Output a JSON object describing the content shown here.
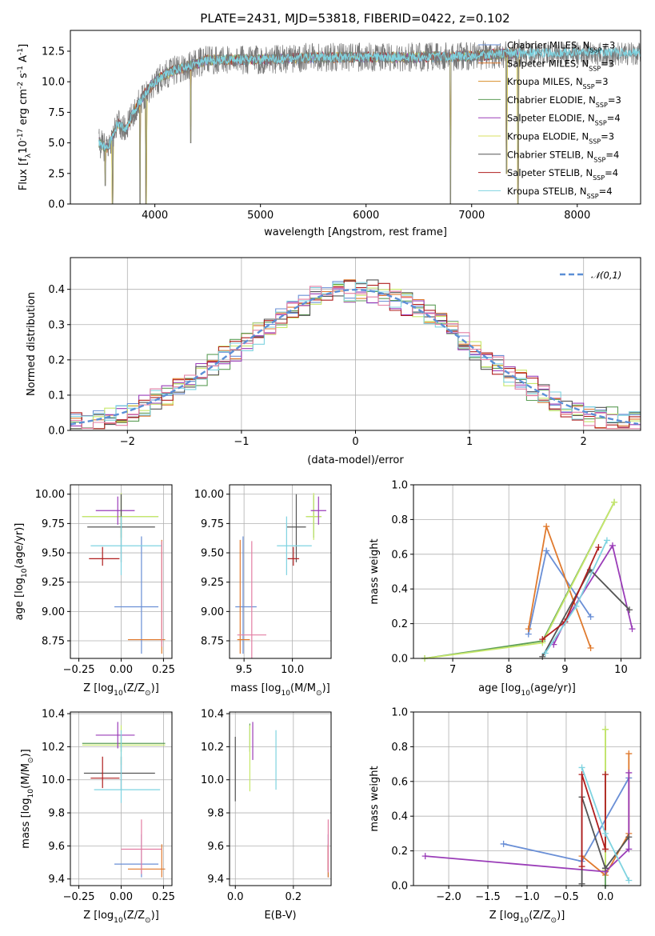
{
  "chart_data": [
    {
      "id": "spectrum",
      "type": "line",
      "title": "PLATE=2431, MJD=53818, FIBERID=0422, z=0.102",
      "xlabel": "wavelength [Angstrom, rest frame]",
      "ylabel": "Flux [f$_\\lambda$10$^{-17}$ erg cm$^{-2}$ s$^{-1}$ A$^{-1}$]",
      "xlim": [
        3200,
        8600
      ],
      "ylim": [
        0,
        14.2
      ],
      "xticks": [
        4000,
        5000,
        6000,
        7000,
        8000
      ],
      "yticks": [
        "0.0",
        "2.5",
        "5.0",
        "7.5",
        "10.0",
        "12.5"
      ],
      "envelope_x": [
        3470,
        3550,
        3650,
        3720,
        3800,
        3900,
        4000,
        4100,
        4200,
        4300,
        4500,
        5000,
        5500,
        6000,
        6500,
        7000,
        7300,
        7450
      ],
      "envelope_y": [
        5.0,
        4.5,
        6.6,
        6.0,
        7.5,
        9.0,
        10.0,
        10.6,
        11.0,
        11.2,
        11.8,
        11.8,
        12.0,
        12.0,
        12.0,
        12.1,
        12.3,
        12.3
      ],
      "absorption_dips": [
        [
          3530,
          1.5
        ],
        [
          3600,
          0.0
        ],
        [
          3860,
          0.0
        ],
        [
          3915,
          0.0
        ],
        [
          4340,
          5.0
        ],
        [
          6800,
          0.0
        ],
        [
          7440,
          0.0
        ],
        [
          7330,
          2.5
        ]
      ],
      "legend_entries": [
        {
          "label": "Chabrier MILES, N$_{SSP}$=3",
          "color": "#6a8fd6"
        },
        {
          "label": "Salpeter MILES, N$_{SSP}$=3",
          "color": "#e07a2e"
        },
        {
          "label": "Kroupa MILES, N$_{SSP}$=3",
          "color": "#d88f2a"
        },
        {
          "label": "Chabrier ELODIE, N$_{SSP}$=3",
          "color": "#5e9e58"
        },
        {
          "label": "Salpeter ELODIE, N$_{SSP}$=4",
          "color": "#9a3db8"
        },
        {
          "label": "Kroupa ELODIE, N$_{SSP}$=3",
          "color": "#d8e060"
        },
        {
          "label": "Chabrier STELIB, N$_{SSP}$=4",
          "color": "#555555"
        },
        {
          "label": "Salpeter STELIB, N$_{SSP}$=4",
          "color": "#b01e1e"
        },
        {
          "label": "Kroupa STELIB, N$_{SSP}$=4",
          "color": "#7fd3e0"
        }
      ],
      "legend_placement": "right"
    },
    {
      "id": "residuals",
      "type": "step-histogram",
      "xlabel": "(data-model)/error",
      "ylabel": "Normed distribution",
      "xlim": [
        -2.5,
        2.5
      ],
      "ylim": [
        0,
        0.49
      ],
      "xticks": [
        "−2",
        "−1",
        "0",
        "1",
        "2"
      ],
      "yticks": [
        "0.0",
        "0.1",
        "0.2",
        "0.3",
        "0.4"
      ],
      "grid": true,
      "reference_curve": {
        "label": "$\\mathcal{N}(0,1)$",
        "color": "#5b8fd6",
        "style": "dashed"
      },
      "legend_placement": "top-right",
      "series_colors": [
        "#6a8fd6",
        "#e07a2e",
        "#5e9e58",
        "#9a3db8",
        "#c7e86b",
        "#555555",
        "#b01e1e",
        "#7fd3e0",
        "#e37ea3"
      ]
    },
    {
      "id": "age_vs_Z",
      "type": "errorbar",
      "xlabel": "Z [log$_{10}$($Z/Z_\\odot$)]",
      "ylabel": "age  [log$_{10}$($age/yr$)]",
      "xlim": [
        -0.3,
        0.3
      ],
      "ylim": [
        8.6,
        10.08
      ],
      "xticks": [
        -0.25,
        0.0,
        0.25
      ],
      "xticklabels": [
        "−0.25",
        "0.00",
        "0.25"
      ],
      "yticks": [
        8.75,
        9.0,
        9.25,
        9.5,
        9.75,
        10.0
      ],
      "yticklabels": [
        "8.75",
        "9.00",
        "9.25",
        "9.50",
        "9.75",
        "10.00"
      ],
      "grid": true,
      "points": [
        {
          "x": 0.12,
          "y": 9.04,
          "xerr": [
            0.16,
            0.1
          ],
          "yerr": [
            0.4,
            0.6
          ],
          "color": "#6a8fd6"
        },
        {
          "x": 0.24,
          "y": 8.76,
          "xerr": [
            0.2,
            0.02
          ],
          "yerr": [
            0.12,
            0.85
          ],
          "color": "#e07a2e"
        },
        {
          "x": 0.0,
          "y": 9.81,
          "xerr": [
            0.23,
            0.22
          ],
          "yerr": [
            0.18,
            0.18
          ],
          "color": "#5e9e58"
        },
        {
          "x": 0.0,
          "y": 9.81,
          "xerr": [
            0.23,
            0.22
          ],
          "yerr": [
            0.2,
            0.2
          ],
          "color": "#c7e86b"
        },
        {
          "x": -0.02,
          "y": 9.86,
          "xerr": [
            0.13,
            0.1
          ],
          "yerr": [
            0.12,
            0.12
          ],
          "color": "#9a3db8"
        },
        {
          "x": 0.0,
          "y": 9.72,
          "xerr": [
            0.2,
            0.2
          ],
          "yerr": [
            0.3,
            0.28
          ],
          "color": "#555555"
        },
        {
          "x": -0.11,
          "y": 9.45,
          "xerr": [
            0.08,
            0.1
          ],
          "yerr": [
            0.06,
            0.1
          ],
          "color": "#b01e1e"
        },
        {
          "x": 0.0,
          "y": 9.56,
          "xerr": [
            0.18,
            0.24
          ],
          "yerr": [
            0.25,
            0.25
          ],
          "color": "#7fd3e0"
        },
        {
          "x": 0.24,
          "y": 9.3,
          "xerr": [
            0.0,
            0.0
          ],
          "yerr": [
            0.6,
            0.3
          ],
          "color": "#e37ea3"
        }
      ]
    },
    {
      "id": "age_vs_mass",
      "type": "errorbar",
      "xlabel": "mass [log$_{10}$($M/M_\\odot$)]",
      "ylabel": "",
      "xlim": [
        9.35,
        10.4
      ],
      "ylim": [
        8.6,
        10.08
      ],
      "xticks": [
        9.5,
        10.0
      ],
      "xticklabels": [
        "9.5",
        "10.0"
      ],
      "yticks": [
        8.75,
        9.0,
        9.25,
        9.5,
        9.75,
        10.0
      ],
      "yticklabels": [
        "8.75",
        "9.00",
        "9.25",
        "9.50",
        "9.75",
        "10.00"
      ],
      "grid": true,
      "points": [
        {
          "x": 9.49,
          "y": 9.04,
          "xerr": [
            0.08,
            0.14
          ],
          "yerr": [
            0.4,
            0.6
          ],
          "color": "#6a8fd6"
        },
        {
          "x": 9.46,
          "y": 8.76,
          "xerr": [
            0.03,
            0.1
          ],
          "yerr": [
            0.12,
            0.85
          ],
          "color": "#e07a2e"
        },
        {
          "x": 10.22,
          "y": 9.81,
          "xerr": [
            0.08,
            0.08
          ],
          "yerr": [
            0.18,
            0.18
          ],
          "color": "#5e9e58"
        },
        {
          "x": 10.22,
          "y": 9.81,
          "xerr": [
            0.08,
            0.08
          ],
          "yerr": [
            0.2,
            0.2
          ],
          "color": "#c7e86b"
        },
        {
          "x": 10.27,
          "y": 9.86,
          "xerr": [
            0.08,
            0.08
          ],
          "yerr": [
            0.12,
            0.12
          ],
          "color": "#9a3db8"
        },
        {
          "x": 10.04,
          "y": 9.72,
          "xerr": [
            0.1,
            0.1
          ],
          "yerr": [
            0.3,
            0.28
          ],
          "color": "#555555"
        },
        {
          "x": 10.01,
          "y": 9.45,
          "xerr": [
            0.06,
            0.06
          ],
          "yerr": [
            0.06,
            0.1
          ],
          "color": "#b01e1e"
        },
        {
          "x": 9.94,
          "y": 9.56,
          "xerr": [
            0.1,
            0.26
          ],
          "yerr": [
            0.25,
            0.25
          ],
          "color": "#7fd3e0"
        },
        {
          "x": 9.58,
          "y": 8.8,
          "xerr": [
            0.15,
            0.15
          ],
          "yerr": [
            0.2,
            0.8
          ],
          "color": "#e37ea3"
        }
      ]
    },
    {
      "id": "weight_vs_age",
      "type": "line",
      "xlabel": "age  [log$_{10}$($age/yr$)]",
      "ylabel": "mass weight",
      "xlim": [
        6.3,
        10.35
      ],
      "ylim": [
        0,
        1.0
      ],
      "xticks": [
        7,
        8,
        9,
        10
      ],
      "xticklabels": [
        "7",
        "8",
        "9",
        "10"
      ],
      "yticks": [
        0.0,
        0.2,
        0.4,
        0.6,
        0.8,
        1.0
      ],
      "yticklabels": [
        "0.0",
        "0.2",
        "0.4",
        "0.6",
        "0.8",
        "1.0"
      ],
      "grid": true,
      "series": [
        {
          "color": "#6a8fd6",
          "x": [
            8.35,
            8.67,
            9.46
          ],
          "y": [
            0.14,
            0.62,
            0.24
          ]
        },
        {
          "color": "#e07a2e",
          "x": [
            8.35,
            8.67,
            9.46
          ],
          "y": [
            0.17,
            0.76,
            0.06
          ]
        },
        {
          "color": "#5e9e58",
          "x": [
            6.5,
            8.6,
            9.88
          ],
          "y": [
            0.0,
            0.1,
            0.9
          ]
        },
        {
          "color": "#c7e86b",
          "x": [
            6.5,
            8.6,
            9.88
          ],
          "y": [
            0.0,
            0.09,
            0.9
          ]
        },
        {
          "color": "#9a3db8",
          "x": [
            8.8,
            9.0,
            9.85,
            10.2
          ],
          "y": [
            0.08,
            0.21,
            0.65,
            0.17
          ]
        },
        {
          "color": "#555555",
          "x": [
            8.6,
            9.45,
            10.15
          ],
          "y": [
            0.01,
            0.51,
            0.28
          ]
        },
        {
          "color": "#b01e1e",
          "x": [
            8.6,
            9.0,
            9.6
          ],
          "y": [
            0.11,
            0.21,
            0.64
          ]
        },
        {
          "color": "#7fd3e0",
          "x": [
            8.65,
            9.2,
            9.75
          ],
          "y": [
            0.03,
            0.3,
            0.68
          ]
        }
      ]
    },
    {
      "id": "mass_vs_Z",
      "type": "errorbar",
      "xlabel": "Z [log$_{10}$($Z/Z_\\odot$)]",
      "ylabel": "mass [log$_{10}$($M/M_\\odot$)]",
      "xlim": [
        -0.3,
        0.3
      ],
      "ylim": [
        9.36,
        10.41
      ],
      "xticks": [
        -0.25,
        0.0,
        0.25
      ],
      "xticklabels": [
        "−0.25",
        "0.00",
        "0.25"
      ],
      "yticks": [
        9.4,
        9.6,
        9.8,
        10.0,
        10.2,
        10.4
      ],
      "yticklabels": [
        "9.4",
        "9.6",
        "9.8",
        "10.0",
        "10.2",
        "10.4"
      ],
      "grid": true,
      "points": [
        {
          "x": 0.12,
          "y": 9.49,
          "xerr": [
            0.16,
            0.1
          ],
          "yerr": [
            0.08,
            0.18
          ],
          "color": "#6a8fd6"
        },
        {
          "x": 0.24,
          "y": 9.46,
          "xerr": [
            0.2,
            0.02
          ],
          "yerr": [
            0.05,
            0.15
          ],
          "color": "#e07a2e"
        },
        {
          "x": 0.0,
          "y": 10.22,
          "xerr": [
            0.23,
            0.26
          ],
          "yerr": [
            0.05,
            0.05
          ],
          "color": "#5e9e58"
        },
        {
          "x": 0.0,
          "y": 10.21,
          "xerr": [
            0.23,
            0.26
          ],
          "yerr": [
            0.12,
            0.12
          ],
          "color": "#c7e86b"
        },
        {
          "x": -0.02,
          "y": 10.27,
          "xerr": [
            0.13,
            0.1
          ],
          "yerr": [
            0.08,
            0.08
          ],
          "color": "#9a3db8"
        },
        {
          "x": 0.0,
          "y": 10.04,
          "xerr": [
            0.22,
            0.2
          ],
          "yerr": [
            0.1,
            0.1
          ],
          "color": "#555555"
        },
        {
          "x": -0.11,
          "y": 10.01,
          "xerr": [
            0.07,
            0.1
          ],
          "yerr": [
            0.06,
            0.13
          ],
          "color": "#b01e1e"
        },
        {
          "x": 0.0,
          "y": 9.94,
          "xerr": [
            0.16,
            0.23
          ],
          "yerr": [
            0.08,
            0.36
          ],
          "color": "#7fd3e0"
        },
        {
          "x": 0.12,
          "y": 9.58,
          "xerr": [
            0.12,
            0.12
          ],
          "yerr": [
            0.15,
            0.18
          ],
          "color": "#e37ea3"
        }
      ]
    },
    {
      "id": "mass_vs_ebv",
      "type": "errorbar",
      "xlabel": "E(B-V)",
      "ylabel": "",
      "xlim": [
        -0.02,
        0.33
      ],
      "ylim": [
        9.36,
        10.41
      ],
      "xticks": [
        0.0,
        0.2
      ],
      "xticklabels": [
        "0.0",
        "0.2"
      ],
      "yticks": [
        9.4,
        9.6,
        9.8,
        10.0,
        10.2,
        10.4
      ],
      "yticklabels": [
        "9.4",
        "9.6",
        "9.8",
        "10.0",
        "10.2",
        "10.4"
      ],
      "grid": true,
      "points": [
        {
          "x": 0.32,
          "y": 9.49,
          "xerr": [
            0.0,
            0.0
          ],
          "yerr": [
            0.08,
            0.18
          ],
          "color": "#6a8fd6"
        },
        {
          "x": 0.32,
          "y": 9.46,
          "xerr": [
            0.0,
            0.0
          ],
          "yerr": [
            0.05,
            0.15
          ],
          "color": "#e07a2e"
        },
        {
          "x": 0.05,
          "y": 10.22,
          "xerr": [
            0.0,
            0.0
          ],
          "yerr": [
            0.05,
            0.12
          ],
          "color": "#5e9e58"
        },
        {
          "x": 0.05,
          "y": 10.13,
          "xerr": [
            0.0,
            0.0
          ],
          "yerr": [
            0.2,
            0.2
          ],
          "color": "#c7e86b"
        },
        {
          "x": 0.06,
          "y": 10.25,
          "xerr": [
            0.0,
            0.0
          ],
          "yerr": [
            0.13,
            0.1
          ],
          "color": "#9a3db8"
        },
        {
          "x": 0.0,
          "y": 10.04,
          "xerr": [
            0.0,
            0.0
          ],
          "yerr": [
            0.17,
            0.22
          ],
          "color": "#555555"
        },
        {
          "x": 0.32,
          "y": 9.5,
          "xerr": [
            0.0,
            0.0
          ],
          "yerr": [
            0.05,
            0.1
          ],
          "color": "#b01e1e"
        },
        {
          "x": 0.14,
          "y": 10.1,
          "xerr": [
            0.0,
            0.0
          ],
          "yerr": [
            0.16,
            0.2
          ],
          "color": "#7fd3e0"
        },
        {
          "x": 0.32,
          "y": 9.62,
          "xerr": [
            0.0,
            0.0
          ],
          "yerr": [
            0.18,
            0.14
          ],
          "color": "#e37ea3"
        }
      ]
    },
    {
      "id": "weight_vs_Z",
      "type": "line",
      "xlabel": "Z [log$_{10}$($Z/Z_\\odot$)]",
      "ylabel": "mass weight",
      "xlim": [
        -2.45,
        0.45
      ],
      "ylim": [
        0,
        1.0
      ],
      "xticks": [
        -2.0,
        -1.5,
        -1.0,
        -0.5,
        0.0
      ],
      "xticklabels": [
        "−2.0",
        "−1.5",
        "−1.0",
        "−0.5",
        "0.0"
      ],
      "yticks": [
        0.0,
        0.2,
        0.4,
        0.6,
        0.8,
        1.0
      ],
      "yticklabels": [
        "0.0",
        "0.2",
        "0.4",
        "0.6",
        "0.8",
        "1.0"
      ],
      "grid": true,
      "series": [
        {
          "color": "#6a8fd6",
          "x": [
            -1.3,
            -0.3,
            0.3
          ],
          "y": [
            0.24,
            0.14,
            0.62
          ]
        },
        {
          "color": "#e07a2e",
          "x": [
            -0.3,
            0.0,
            0.3,
            0.3
          ],
          "y": [
            0.17,
            0.06,
            0.3,
            0.76
          ]
        },
        {
          "color": "#5e9e58",
          "x": [
            0.0,
            0.0,
            0.0
          ],
          "y": [
            0.0,
            0.1,
            0.9
          ]
        },
        {
          "color": "#c7e86b",
          "x": [
            0.0,
            0.0
          ],
          "y": [
            0.09,
            0.9
          ]
        },
        {
          "color": "#9a3db8",
          "x": [
            -2.3,
            0.0,
            0.3,
            0.3
          ],
          "y": [
            0.17,
            0.08,
            0.21,
            0.65
          ]
        },
        {
          "color": "#555555",
          "x": [
            -0.3,
            -0.3,
            0.0,
            0.3
          ],
          "y": [
            0.01,
            0.51,
            0.1,
            0.28
          ]
        },
        {
          "color": "#b01e1e",
          "x": [
            -0.3,
            -0.3,
            0.0,
            0.0
          ],
          "y": [
            0.11,
            0.64,
            0.21,
            0.64
          ]
        },
        {
          "color": "#7fd3e0",
          "x": [
            -0.3,
            0.0,
            0.3
          ],
          "y": [
            0.68,
            0.3,
            0.03
          ]
        }
      ]
    }
  ]
}
